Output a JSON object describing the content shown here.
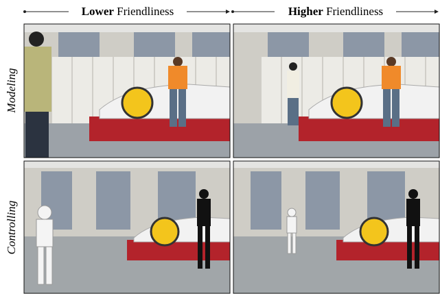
{
  "header": {
    "columns": [
      {
        "bold": "Lower",
        "rest": "Friendliness"
      },
      {
        "bold": "Higher",
        "rest": "Friendliness"
      }
    ]
  },
  "rows": [
    {
      "label": "Modeling"
    },
    {
      "label": "Controlling"
    }
  ]
}
